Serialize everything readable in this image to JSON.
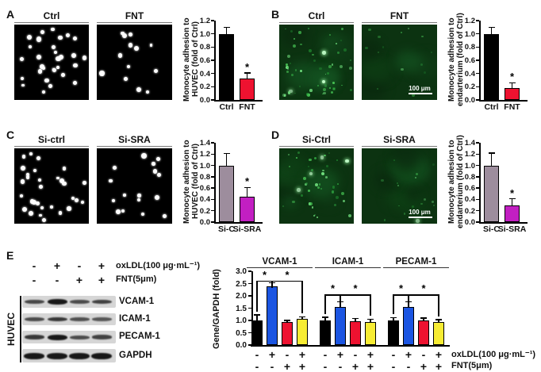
{
  "panels": {
    "A": {
      "letter": "A",
      "micrographs": [
        {
          "title": "Ctrl",
          "type": "monocyte-adhesion",
          "dot_count": 30
        },
        {
          "title": "FNT",
          "type": "monocyte-adhesion",
          "dot_count": 13
        }
      ]
    },
    "B": {
      "letter": "B",
      "micrographs": [
        {
          "title": "Ctrl",
          "type": "fluorescence",
          "dot_count": 60,
          "dim": false
        },
        {
          "title": "FNT",
          "type": "fluorescence",
          "dot_count": 14,
          "dim": true,
          "scale_bar_label": "100 μm"
        }
      ]
    },
    "C": {
      "letter": "C",
      "micrographs": [
        {
          "title": "Si-ctrl",
          "type": "monocyte-adhesion",
          "dot_count": 30
        },
        {
          "title": "Si-SRA",
          "type": "monocyte-adhesion",
          "dot_count": 16
        }
      ]
    },
    "D": {
      "letter": "D",
      "micrographs": [
        {
          "title": "Si-Ctrl",
          "type": "fluorescence",
          "dot_count": 45,
          "dim": false
        },
        {
          "title": "Si-SRA",
          "type": "fluorescence",
          "dot_count": 16,
          "dim": true,
          "scale_bar_label": "100 μm"
        }
      ]
    },
    "E": {
      "letter": "E",
      "western_blot": {
        "cell_line_label": "HUVEC",
        "condition_rows": [
          {
            "symbols": [
              "-",
              "+",
              "-",
              "+"
            ],
            "label": "oxLDL(100 μg·mL⁻¹)"
          },
          {
            "symbols": [
              "-",
              "-",
              "+",
              "+"
            ],
            "label": "FNT(5μm)"
          }
        ],
        "bands": [
          {
            "protein": "VCAM-1",
            "intensities": [
              0.55,
              1.0,
              0.5,
              0.6
            ]
          },
          {
            "protein": "ICAM-1",
            "intensities": [
              0.5,
              0.7,
              0.45,
              0.4
            ]
          },
          {
            "protein": "PECAM-1",
            "intensities": [
              0.7,
              1.0,
              0.5,
              0.6
            ]
          },
          {
            "protein": "GAPDH",
            "intensities": [
              1.0,
              1.0,
              1.0,
              1.0
            ]
          }
        ]
      }
    }
  },
  "chart_data": [
    {
      "panel": "A",
      "type": "bar",
      "categories": [
        "Ctrl",
        "FNT"
      ],
      "values": [
        1.0,
        0.32
      ],
      "errors": [
        0.1,
        0.09
      ],
      "bar_colors": [
        "#000000",
        "#ee1230"
      ],
      "sig_labels": [
        "",
        "*"
      ],
      "ylabel_lines": [
        "Monocyte adhesion to",
        "HUVEC (fold of Ctrl)"
      ],
      "ylim": [
        0,
        1.2
      ],
      "ytick_step": 0.2,
      "xlabel": "",
      "grid": false
    },
    {
      "panel": "B",
      "type": "bar",
      "categories": [
        "Ctrl",
        "FNT"
      ],
      "values": [
        1.0,
        0.18
      ],
      "errors": [
        0.1,
        0.08
      ],
      "bar_colors": [
        "#000000",
        "#ee1230"
      ],
      "sig_labels": [
        "",
        "*"
      ],
      "ylabel_lines": [
        "Monocyte adhesion to",
        "endarterium (fold of Ctrl)"
      ],
      "ylim": [
        0,
        1.2
      ],
      "ytick_step": 0.2,
      "xlabel": "",
      "grid": false
    },
    {
      "panel": "C",
      "type": "bar",
      "categories": [
        "Si-C",
        "Si-SRA"
      ],
      "values": [
        1.0,
        0.45
      ],
      "errors": [
        0.21,
        0.16
      ],
      "bar_colors": [
        "#9d8d9d",
        "#c21fc2"
      ],
      "sig_labels": [
        "",
        "*"
      ],
      "ylabel_lines": [
        "Monocyte adhesion to",
        "HUVEC (fold of Ctrl)"
      ],
      "ylim": [
        0,
        1.4
      ],
      "ytick_step": 0.2,
      "xlabel": "",
      "grid": false
    },
    {
      "panel": "D",
      "type": "bar",
      "categories": [
        "Si-C",
        "Si-SRA"
      ],
      "values": [
        1.0,
        0.3
      ],
      "errors": [
        0.22,
        0.11
      ],
      "bar_colors": [
        "#9d8d9d",
        "#c21fc2"
      ],
      "sig_labels": [
        "",
        "*"
      ],
      "ylabel_lines": [
        "Monocyte adhesion to",
        "endarterium (fold of Ctrl)"
      ],
      "ylim": [
        0,
        1.4
      ],
      "ytick_step": 0.2,
      "xlabel": "",
      "grid": false
    },
    {
      "panel": "E",
      "type": "bar",
      "grouped": true,
      "ylabel": "Gene/GAPDH (fold)",
      "ylim": [
        0,
        3.0
      ],
      "ytick_step": 0.5,
      "grid": false,
      "series_colors": [
        "#000000",
        "#1b55e2",
        "#ee1230",
        "#f7ec33"
      ],
      "groups": [
        {
          "name": "VCAM-1",
          "values": [
            1.0,
            2.4,
            0.92,
            1.07
          ],
          "errors": [
            0.22,
            0.13,
            0.08,
            0.08
          ],
          "bracket": {
            "height": 2.62,
            "bars": [
              0,
              1,
              3
            ],
            "stars": [
              "*",
              "*"
            ]
          }
        },
        {
          "name": "ICAM-1",
          "values": [
            1.0,
            1.55,
            0.98,
            0.93
          ],
          "errors": [
            0.13,
            0.2,
            0.1,
            0.12
          ],
          "bracket": {
            "height": 2.05,
            "bars": [
              0,
              1,
              3
            ],
            "stars": [
              "*",
              "*"
            ]
          }
        },
        {
          "name": "PECAM-1",
          "values": [
            1.0,
            1.55,
            1.0,
            0.93
          ],
          "errors": [
            0.12,
            0.2,
            0.1,
            0.1
          ],
          "bracket": {
            "height": 2.05,
            "bars": [
              0,
              1,
              3
            ],
            "stars": [
              "*",
              "*"
            ]
          }
        }
      ],
      "condition_rows": [
        {
          "symbols": [
            "-",
            "+",
            "-",
            "+"
          ],
          "label": "oxLDL(100 μg·mL⁻¹)"
        },
        {
          "symbols": [
            "-",
            "-",
            "+",
            "+"
          ],
          "label": "FNT(5μm)"
        }
      ]
    }
  ],
  "colors": {
    "bar_black": "#000000",
    "bar_red": "#ee1230",
    "bar_blue": "#1b55e2",
    "bar_yellow": "#f7ec33",
    "bar_gray": "#9d8d9d",
    "bar_magenta": "#c21fc2",
    "fluorescence_green": "#2e9c3e",
    "blot_strip_bg": "#d6d6d6"
  }
}
